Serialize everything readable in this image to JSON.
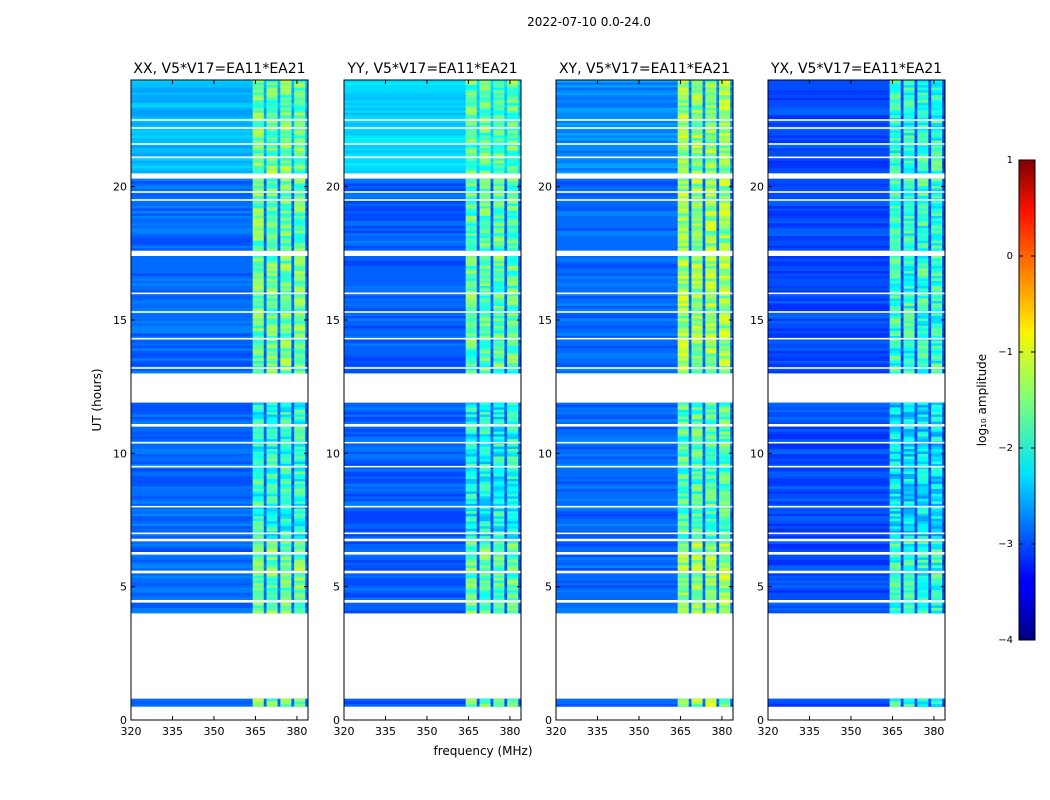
{
  "figure": {
    "suptitle": "2022-07-10 0.0-24.0",
    "xlabel": "frequency (MHz)",
    "ylabel": "UT (hours)",
    "colorbar": {
      "label": "log₁₀ amplitude",
      "ticks": [
        "1",
        "0",
        "−1",
        "−2",
        "−3",
        "−4"
      ],
      "range": [
        -4,
        1
      ],
      "colormap": "jet"
    }
  },
  "chart_data": [
    {
      "type": "heatmap",
      "title": "XX, V5*V17=EA11*EA21",
      "xlabel": "",
      "ylabel": "UT (hours)",
      "xlim": [
        320,
        384
      ],
      "ylim": [
        0,
        24
      ],
      "xticks": [
        "320",
        "335",
        "350",
        "365",
        "380"
      ],
      "yticks": [
        "0",
        "5",
        "10",
        "15",
        "20"
      ],
      "background_level": -2.85,
      "top_background_level": -2.45,
      "rfi_band_level": -1.6,
      "rfi_bands_mhz": [
        [
          364,
          368
        ],
        [
          369,
          373
        ],
        [
          374,
          378
        ],
        [
          379,
          383
        ]
      ],
      "data_segments_ut": [
        [
          0.5,
          0.8
        ],
        [
          4.0,
          4.4
        ],
        [
          4.5,
          5.5
        ],
        [
          5.6,
          6.2
        ],
        [
          6.3,
          6.7
        ],
        [
          6.8,
          11.0
        ],
        [
          11.1,
          11.9
        ],
        [
          13.0,
          17.4
        ],
        [
          17.6,
          20.3
        ],
        [
          20.5,
          24.0
        ]
      ],
      "flagged_lines_ut": [
        7.0,
        8.0,
        9.5,
        10.4,
        12.0,
        13.2,
        14.3,
        15.3,
        16.0,
        19.5,
        19.8,
        21.1,
        21.6,
        22.2,
        22.5
      ]
    },
    {
      "type": "heatmap",
      "title": "YY, V5*V17=EA11*EA21",
      "xlabel": "frequency (MHz)",
      "ylabel": "",
      "xlim": [
        320,
        384
      ],
      "ylim": [
        0,
        24
      ],
      "xticks": [
        "320",
        "335",
        "350",
        "365",
        "380"
      ],
      "yticks": [
        "0",
        "5",
        "10",
        "15",
        "20"
      ],
      "background_level": -2.9,
      "top_background_level": -2.3,
      "rfi_band_level": -1.7,
      "rfi_bands_mhz": [
        [
          364,
          368
        ],
        [
          369,
          373
        ],
        [
          374,
          378
        ],
        [
          379,
          383
        ]
      ],
      "data_segments_ut": [
        [
          0.5,
          0.8
        ],
        [
          4.0,
          4.4
        ],
        [
          4.5,
          5.5
        ],
        [
          5.6,
          6.2
        ],
        [
          6.3,
          6.7
        ],
        [
          6.8,
          11.0
        ],
        [
          11.1,
          11.9
        ],
        [
          13.0,
          17.4
        ],
        [
          17.6,
          20.3
        ],
        [
          20.5,
          24.0
        ]
      ],
      "flagged_lines_ut": [
        7.0,
        8.0,
        9.5,
        10.4,
        12.0,
        13.2,
        14.3,
        15.3,
        16.0,
        19.5,
        19.8,
        21.1,
        21.6,
        22.2,
        22.5
      ]
    },
    {
      "type": "heatmap",
      "title": "XY, V5*V17=EA11*EA21",
      "xlabel": "",
      "ylabel": "",
      "xlim": [
        320,
        384
      ],
      "ylim": [
        0,
        24
      ],
      "xticks": [
        "320",
        "335",
        "350",
        "365",
        "380"
      ],
      "yticks": [
        "0",
        "5",
        "10",
        "15",
        "20"
      ],
      "background_level": -2.85,
      "top_background_level": -2.7,
      "rfi_band_level": -1.4,
      "rfi_bands_mhz": [
        [
          364,
          368
        ],
        [
          369,
          373
        ],
        [
          374,
          378
        ],
        [
          379,
          383
        ]
      ],
      "data_segments_ut": [
        [
          0.5,
          0.8
        ],
        [
          4.0,
          4.4
        ],
        [
          4.5,
          5.5
        ],
        [
          5.6,
          6.2
        ],
        [
          6.3,
          6.7
        ],
        [
          6.8,
          11.0
        ],
        [
          11.1,
          11.9
        ],
        [
          13.0,
          17.4
        ],
        [
          17.6,
          20.3
        ],
        [
          20.5,
          24.0
        ]
      ],
      "flagged_lines_ut": [
        7.0,
        8.0,
        9.5,
        10.4,
        12.0,
        13.2,
        14.3,
        15.3,
        16.0,
        19.5,
        19.8,
        21.1,
        21.6,
        22.2,
        22.5
      ]
    },
    {
      "type": "heatmap",
      "title": "YX, V5*V17=EA11*EA21",
      "xlabel": "",
      "ylabel": "",
      "xlim": [
        320,
        384
      ],
      "ylim": [
        0,
        24
      ],
      "xticks": [
        "320",
        "335",
        "350",
        "365",
        "380"
      ],
      "yticks": [
        "0",
        "5",
        "10",
        "15",
        "20"
      ],
      "background_level": -3.0,
      "top_background_level": -3.0,
      "rfi_band_level": -1.9,
      "rfi_bands_mhz": [
        [
          364,
          368
        ],
        [
          369,
          373
        ],
        [
          374,
          378
        ],
        [
          379,
          383
        ]
      ],
      "data_segments_ut": [
        [
          0.5,
          0.8
        ],
        [
          4.0,
          4.4
        ],
        [
          4.5,
          5.5
        ],
        [
          5.6,
          6.2
        ],
        [
          6.3,
          6.7
        ],
        [
          6.8,
          11.0
        ],
        [
          11.1,
          11.9
        ],
        [
          13.0,
          17.4
        ],
        [
          17.6,
          20.3
        ],
        [
          20.5,
          24.0
        ]
      ],
      "flagged_lines_ut": [
        7.0,
        8.0,
        9.5,
        10.4,
        12.0,
        13.2,
        14.3,
        15.3,
        16.0,
        19.5,
        19.8,
        21.1,
        21.6,
        22.2,
        22.5
      ]
    }
  ]
}
